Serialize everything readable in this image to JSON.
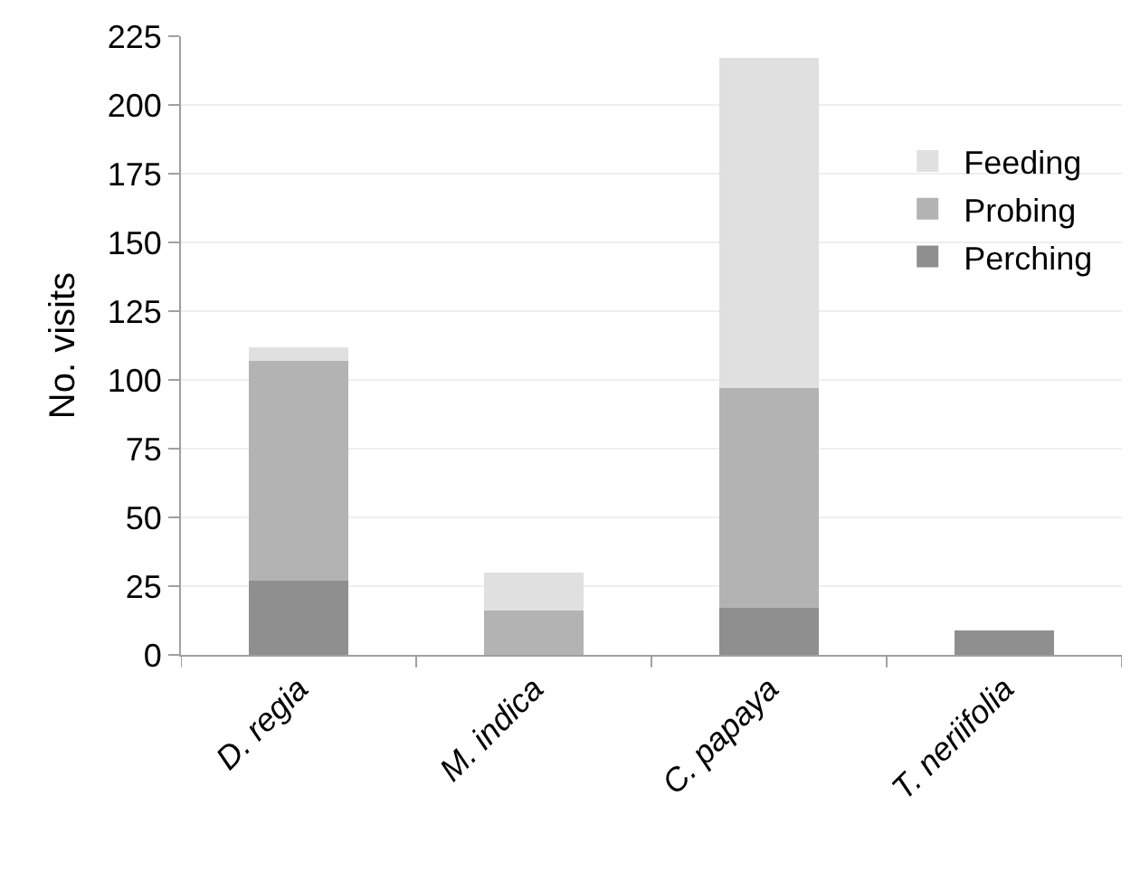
{
  "chart_data": {
    "type": "bar",
    "ylabel": "No. visits",
    "stacked": true,
    "categories": [
      "D. regia",
      "M. indica",
      "C. papaya",
      "T. neriifolia"
    ],
    "series": [
      {
        "name": "Perching",
        "color": "#8f8f8f",
        "values": [
          27,
          0,
          17,
          9
        ]
      },
      {
        "name": "Probing",
        "color": "#b3b3b3",
        "values": [
          80,
          16,
          80,
          0
        ]
      },
      {
        "name": "Feeding",
        "color": "#e0e0e0",
        "values": [
          5,
          14,
          120,
          0
        ]
      }
    ],
    "ylim": [
      0,
      225
    ],
    "yticks": [
      0,
      25,
      50,
      75,
      100,
      125,
      150,
      175,
      200,
      225
    ],
    "grid": "y",
    "legend": "right"
  }
}
